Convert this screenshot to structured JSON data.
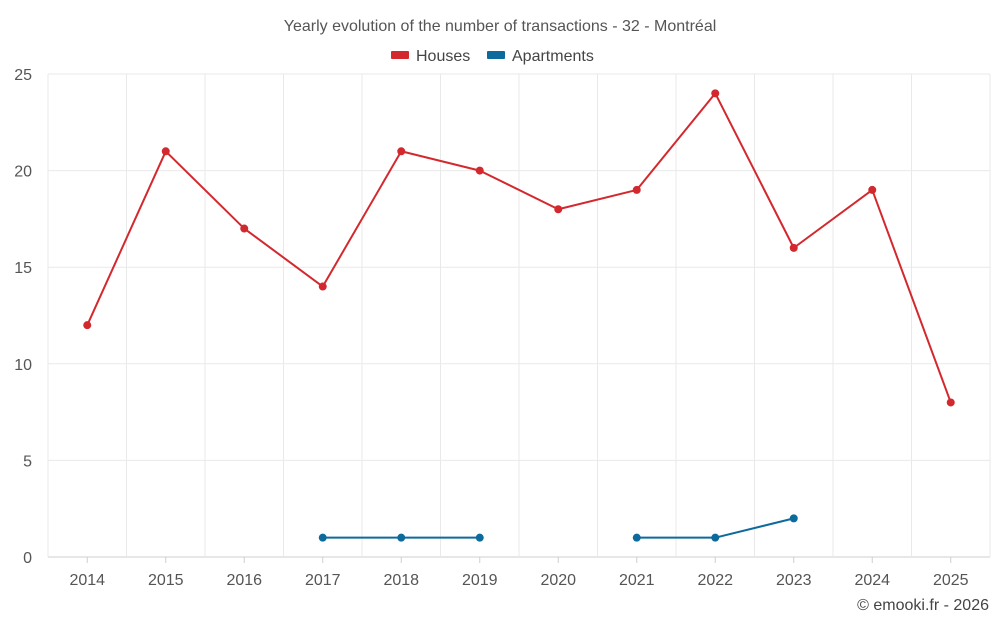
{
  "chart_data": {
    "type": "line",
    "title": "Yearly evolution of the number of transactions - 32 - Montréal",
    "categories": [
      "2014",
      "2015",
      "2016",
      "2017",
      "2018",
      "2019",
      "2020",
      "2021",
      "2022",
      "2023",
      "2024",
      "2025"
    ],
    "yticks": [
      0,
      5,
      10,
      15,
      20,
      25
    ],
    "ylim": [
      0,
      25
    ],
    "xlabel": "",
    "ylabel": "",
    "grid": true,
    "legend_position": "top-center",
    "series": [
      {
        "name": "Houses",
        "color": "#d3292e",
        "values": [
          12,
          21,
          17,
          14,
          21,
          20,
          18,
          19,
          24,
          16,
          19,
          8
        ]
      },
      {
        "name": "Apartments",
        "color": "#0d6a9c",
        "values": [
          null,
          null,
          null,
          1,
          1,
          1,
          null,
          1,
          1,
          2,
          null,
          null
        ]
      }
    ]
  },
  "credit": "© emooki.fr - 2026"
}
